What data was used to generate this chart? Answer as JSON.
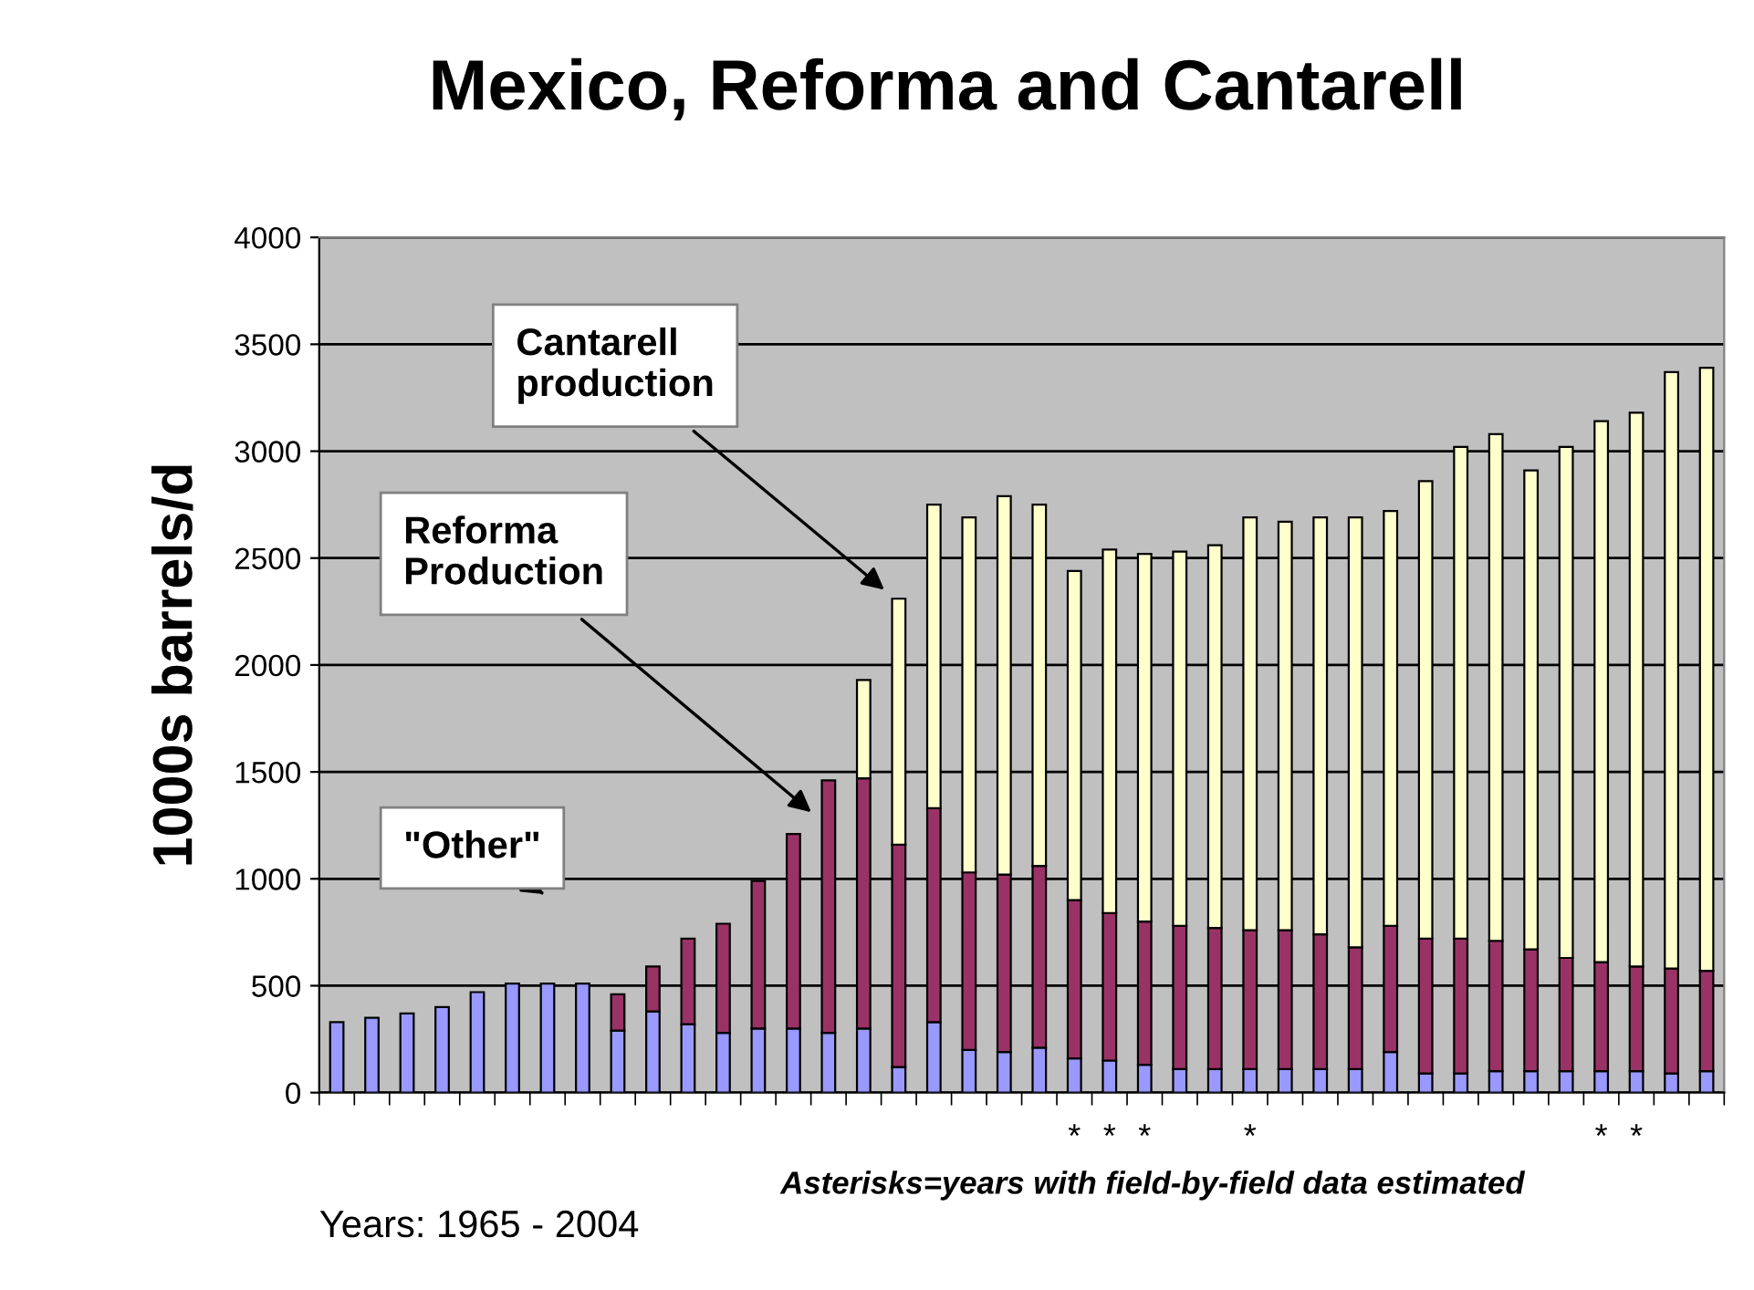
{
  "chart_data": {
    "type": "bar",
    "title": "Mexico, Reforma and Cantarell",
    "xlabel": "Years: 1965 - 2004",
    "ylabel": "1000s barrels/d",
    "annotations": [
      "\"Other\"",
      "Reforma\nProduction",
      "Cantarell\nproduction",
      "Asterisks=years with field-by-field data estimated"
    ],
    "categories": [
      null,
      null,
      null,
      null,
      null,
      null,
      null,
      null,
      null,
      null,
      null,
      null,
      null,
      null,
      null,
      null,
      null,
      null,
      null,
      null,
      null,
      "*",
      "*",
      "*",
      null,
      null,
      "*",
      null,
      null,
      null,
      null,
      null,
      null,
      null,
      null,
      null,
      "*",
      "*",
      null,
      null
    ],
    "stacked": true,
    "legend": false,
    "grid": "y",
    "ylim": [
      0,
      4000
    ],
    "yticks": [
      0,
      500,
      1000,
      1500,
      2000,
      2500,
      3000,
      3500,
      4000
    ],
    "series": [
      {
        "color": "#9999ff",
        "values": [
          330,
          350,
          370,
          400,
          470,
          510,
          510,
          510,
          290,
          380,
          320,
          280,
          300,
          300,
          280,
          300,
          120,
          330,
          200,
          190,
          210,
          160,
          150,
          130,
          110,
          110,
          110,
          110,
          110,
          110,
          190,
          90,
          90,
          100,
          100,
          100,
          100,
          100,
          90,
          100
        ]
      },
      {
        "color": "#993366",
        "values": [
          null,
          null,
          null,
          null,
          null,
          null,
          null,
          null,
          170,
          210,
          400,
          510,
          690,
          910,
          1180,
          1170,
          1040,
          1000,
          830,
          830,
          850,
          740,
          690,
          670,
          670,
          660,
          650,
          650,
          630,
          570,
          590,
          630,
          630,
          610,
          570,
          530,
          510,
          490,
          490,
          470
        ]
      },
      {
        "color": "#ffffcc",
        "values": [
          null,
          null,
          null,
          null,
          null,
          null,
          null,
          null,
          null,
          null,
          null,
          null,
          null,
          null,
          null,
          460,
          1150,
          1420,
          1660,
          1770,
          1690,
          1540,
          1700,
          1720,
          1750,
          1790,
          1930,
          1910,
          1950,
          2010,
          1940,
          2140,
          2300,
          2370,
          2240,
          2390,
          2530,
          2590,
          2790,
          2820
        ]
      }
    ]
  }
}
